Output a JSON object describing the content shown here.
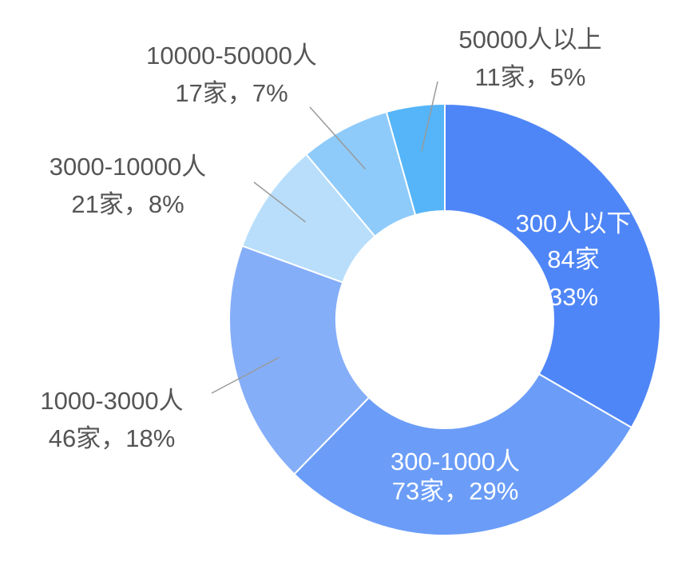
{
  "chart_data": {
    "type": "pie",
    "variant": "donut",
    "title": "",
    "unit": "家",
    "slices": [
      {
        "name": "300人以下",
        "count": 84,
        "percent": 33,
        "count_label": "84家",
        "percent_label": "33%",
        "color": "#4f86f7"
      },
      {
        "name": "300-1000人",
        "count": 73,
        "percent": 29,
        "count_label": "73家，29%",
        "color": "#6b9df8"
      },
      {
        "name": "1000-3000人",
        "count": 46,
        "percent": 18,
        "count_label": "46家，18%",
        "color": "#85aef9"
      },
      {
        "name": "3000-10000人",
        "count": 21,
        "percent": 8,
        "count_label": "21家，8%",
        "color": "#b8defb"
      },
      {
        "name": "10000-50000人",
        "count": 17,
        "percent": 7,
        "count_label": "17家，7%",
        "color": "#8ecbfa"
      },
      {
        "name": "50000人以上",
        "count": 11,
        "percent": 5,
        "count_label": "11家，5%",
        "color": "#55b5f8"
      }
    ]
  }
}
